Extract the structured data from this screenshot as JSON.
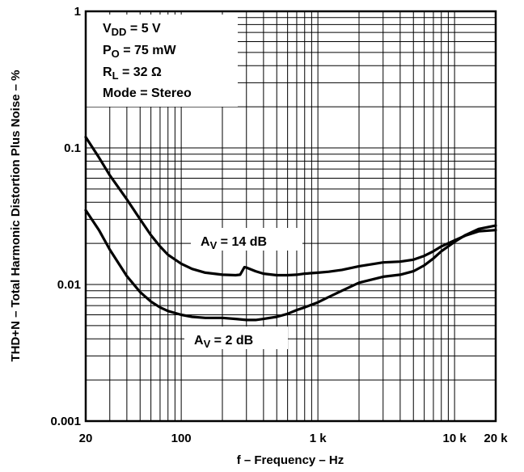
{
  "chart_data": {
    "type": "line",
    "xlabel": "f – Frequency – Hz",
    "ylabel": "THD+N – Total Harmonic Distortion Plus Noise – %",
    "x_scale": "log",
    "y_scale": "log",
    "xlim": [
      20,
      20000
    ],
    "ylim": [
      0.001,
      1
    ],
    "grid": true,
    "x_ticks": [
      {
        "value": 20,
        "label": "20"
      },
      {
        "value": 100,
        "label": "100"
      },
      {
        "value": 1000,
        "label": "1 k"
      },
      {
        "value": 10000,
        "label": "10 k"
      },
      {
        "value": 20000,
        "label": "20 k"
      }
    ],
    "y_ticks": [
      {
        "value": 1,
        "label": "1"
      },
      {
        "value": 0.1,
        "label": "0.1"
      },
      {
        "value": 0.01,
        "label": "0.01"
      },
      {
        "value": 0.001,
        "label": "0.001"
      }
    ],
    "conditions": {
      "vdd": {
        "main": "V",
        "sub": "DD",
        "rest": " = 5 V"
      },
      "po": {
        "main": "P",
        "sub": "O",
        "rest": " = 75 mW"
      },
      "rl": {
        "main": "R",
        "sub": "L",
        "rest": " = 32 Ω"
      },
      "mode": {
        "main": "Mode = Stereo"
      }
    },
    "series": [
      {
        "label": {
          "main": "A",
          "sub": "V",
          "rest": " = 14 dB"
        },
        "x": [
          20,
          25,
          30,
          40,
          50,
          60,
          70,
          80,
          100,
          120,
          150,
          200,
          250,
          270,
          290,
          300,
          350,
          400,
          500,
          600,
          700,
          800,
          1000,
          1200,
          1500,
          2000,
          3000,
          4000,
          5000,
          6000,
          7000,
          8000,
          10000,
          12000,
          15000,
          20000
        ],
        "values": [
          0.12,
          0.085,
          0.063,
          0.042,
          0.03,
          0.023,
          0.019,
          0.0165,
          0.0142,
          0.013,
          0.0122,
          0.0118,
          0.0117,
          0.0118,
          0.0134,
          0.0133,
          0.0125,
          0.012,
          0.0117,
          0.0117,
          0.0118,
          0.012,
          0.0122,
          0.0124,
          0.0128,
          0.0136,
          0.0145,
          0.0147,
          0.0152,
          0.0162,
          0.0175,
          0.019,
          0.021,
          0.0228,
          0.0245,
          0.025
        ]
      },
      {
        "label": {
          "main": "A",
          "sub": "V",
          "rest": " = 2 dB"
        },
        "x": [
          20,
          25,
          30,
          40,
          50,
          60,
          70,
          80,
          100,
          120,
          150,
          200,
          250,
          300,
          350,
          400,
          500,
          600,
          700,
          800,
          1000,
          1200,
          1500,
          2000,
          3000,
          4000,
          5000,
          6000,
          7000,
          8000,
          10000,
          12000,
          15000,
          20000
        ],
        "values": [
          0.035,
          0.025,
          0.018,
          0.0115,
          0.0088,
          0.0075,
          0.0068,
          0.0064,
          0.006,
          0.0058,
          0.0057,
          0.0057,
          0.0056,
          0.0055,
          0.0055,
          0.0056,
          0.0058,
          0.0061,
          0.0065,
          0.0068,
          0.0074,
          0.0081,
          0.009,
          0.0103,
          0.0114,
          0.0118,
          0.0125,
          0.0138,
          0.0155,
          0.0175,
          0.0205,
          0.023,
          0.0255,
          0.027
        ]
      }
    ]
  }
}
